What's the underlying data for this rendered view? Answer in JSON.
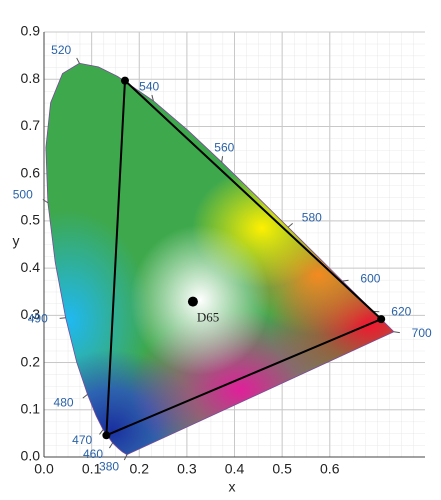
{
  "chart_data": {
    "type": "chromaticity",
    "xlabel": "x",
    "ylabel": "y",
    "xlim": [
      0,
      0.8
    ],
    "ylim": [
      0,
      0.9
    ],
    "xticks": [
      {
        "value": 0,
        "label": "0.0"
      },
      0.1,
      0.2,
      0.3,
      0.4,
      0.5,
      0.6
    ],
    "yticks": [
      {
        "value": 0,
        "label": "0.0"
      },
      0.1,
      0.2,
      0.3,
      0.4,
      0.5,
      0.6,
      0.7,
      0.8,
      0.9
    ],
    "grid": true,
    "label_color": "#2a62a8",
    "locus": {
      "wavelengths": [
        380,
        null,
        null,
        460,
        470,
        null,
        480,
        null,
        490,
        null,
        500,
        null,
        null,
        null,
        520,
        null,
        null,
        540,
        null,
        560,
        null,
        580,
        null,
        600,
        620,
        700
      ],
      "x": [
        0.1741,
        0.1644,
        0.1566,
        0.144,
        0.1241,
        0.1096,
        0.0913,
        0.0687,
        0.0454,
        0.0235,
        0.0082,
        0.0039,
        0.0139,
        0.0389,
        0.0743,
        0.1142,
        0.1547,
        0.2296,
        0.3016,
        0.3731,
        0.4441,
        0.5125,
        0.5752,
        0.627,
        0.6915,
        0.7347
      ],
      "y": [
        0.005,
        0.0109,
        0.0177,
        0.0297,
        0.0578,
        0.0868,
        0.1327,
        0.2007,
        0.295,
        0.4127,
        0.5384,
        0.6548,
        0.7502,
        0.812,
        0.8338,
        0.8262,
        0.8059,
        0.7543,
        0.6923,
        0.6245,
        0.5547,
        0.4866,
        0.4242,
        0.3725,
        0.3083,
        0.2653
      ]
    },
    "primaries": {
      "x": [
        0.17,
        0.708,
        0.131
      ],
      "y": [
        0.797,
        0.292,
        0.046
      ],
      "color": "#000000"
    },
    "white_point": {
      "name": "D65",
      "x": 0.3127,
      "y": 0.329
    }
  }
}
